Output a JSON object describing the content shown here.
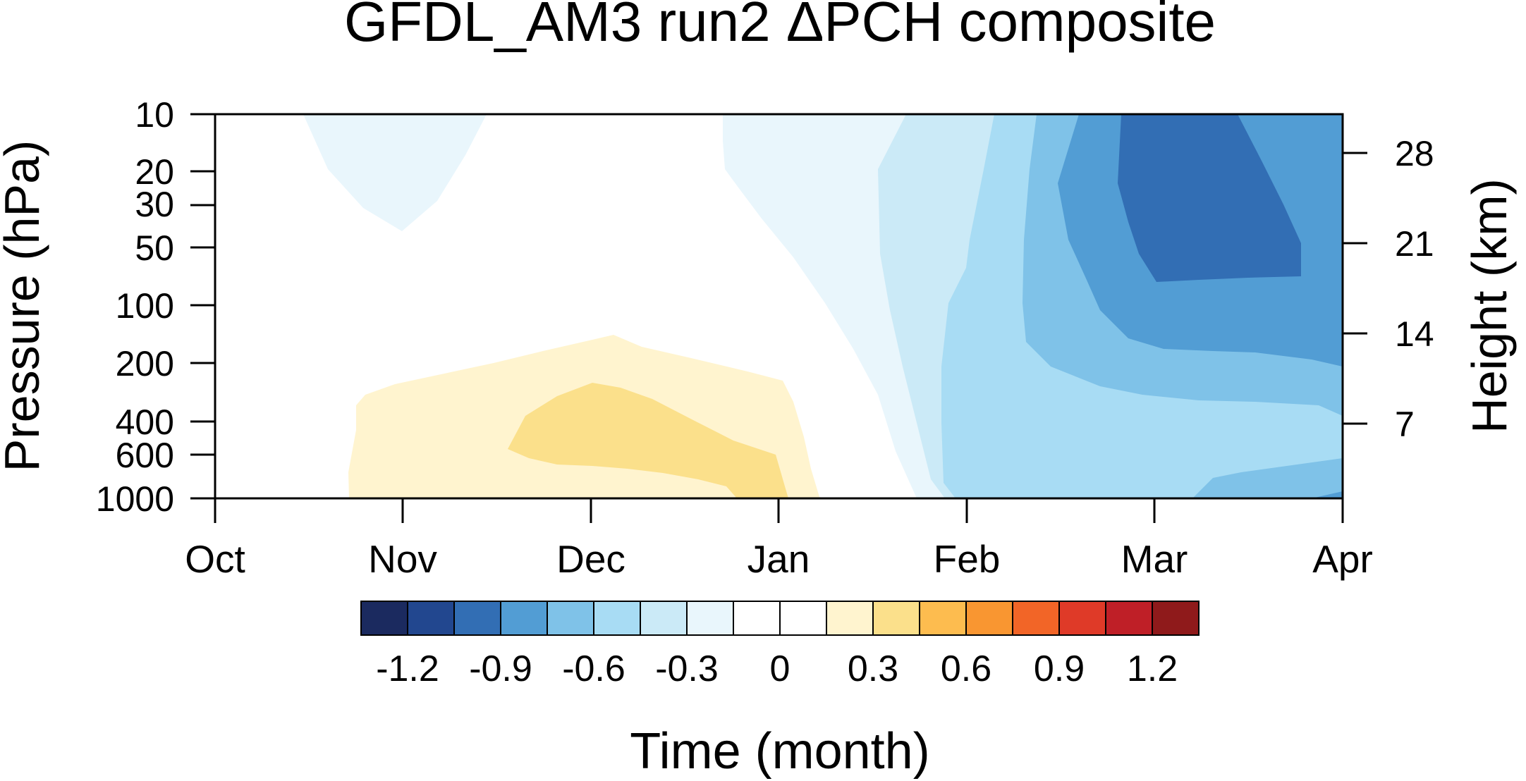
{
  "chart_data": {
    "type": "heatmap",
    "title": "GFDL_AM3 run2 ΔPCH composite",
    "xlabel": "Time (month)",
    "ylabel": "Pressure (hPa)",
    "ylabel_right": "Height (km)",
    "x_ticks": [
      "Oct",
      "Nov",
      "Dec",
      "Jan",
      "Feb",
      "Mar",
      "Apr"
    ],
    "xlim": [
      "Oct",
      "Apr"
    ],
    "y_scale": "log",
    "ylim": [
      1000,
      10
    ],
    "y_ticks": [
      10,
      20,
      30,
      50,
      100,
      200,
      400,
      600,
      1000
    ],
    "y_right_ticks": [
      28,
      21,
      14,
      7
    ],
    "grid": false,
    "colorbar": {
      "orientation": "horizontal",
      "colors": [
        "#1b2a5f",
        "#22478f",
        "#326eb4",
        "#529dd4",
        "#7fc2e8",
        "#a8dcf4",
        "#cbeaf7",
        "#e9f6fc",
        "#ffffff",
        "#ffffff",
        "#fff4cf",
        "#fbe08b",
        "#fdbc4f",
        "#f99631",
        "#f26527",
        "#df3a28",
        "#bf1f27",
        "#8f1a1b"
      ],
      "tick_labels": [
        "-1.2",
        "-0.9",
        "-0.6",
        "-0.3",
        "0",
        "0.3",
        "0.6",
        "0.9",
        "1.2"
      ]
    },
    "contours": [
      {
        "level": "-0.15 to 0",
        "color": "#e9f6fc",
        "region": "upper stratosphere early Nov"
      },
      {
        "level": "-0.15 to 0",
        "color": "#e9f6fc",
        "region": "Jan to Feb, upper levels"
      },
      {
        "level": "-0.3 to -0.15",
        "color": "#cbeaf7",
        "region": "Feb onward"
      },
      {
        "level": "-0.45 to -0.3",
        "color": "#a8dcf4",
        "region": "Feb to Apr, troposphere and stratosphere"
      },
      {
        "level": "-0.6 to -0.45",
        "color": "#7fc2e8",
        "region": "mid Feb to Apr"
      },
      {
        "level": "-0.75 to -0.6",
        "color": "#529dd4",
        "region": "late Feb to Apr, stratosphere"
      },
      {
        "level": "-0.9 to -0.75",
        "color": "#326eb4",
        "region": "Mar, 10-70 hPa"
      },
      {
        "level": "0 to 0.15",
        "color": "#fff4cf",
        "region": "Nov to early Jan, 150-1000 hPa"
      },
      {
        "level": "0.15 to 0.3",
        "color": "#fbe08b",
        "region": "Dec, 250-1000 hPa"
      }
    ]
  }
}
